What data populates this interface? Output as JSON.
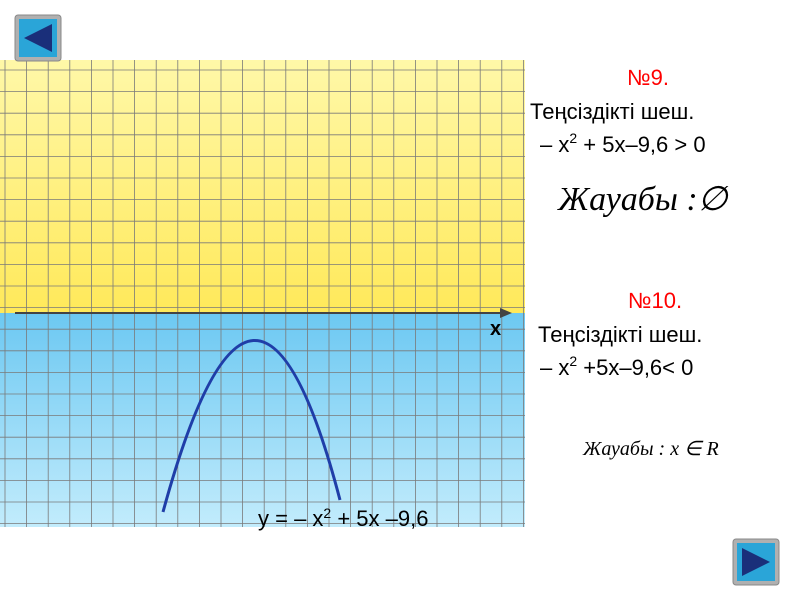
{
  "problems": [
    {
      "number": "№9.",
      "instruction": "Теңсіздікті шеш.",
      "inequality": {
        "before": "– x",
        "exponent": "2",
        "after": " + 5x–9,6 > 0"
      },
      "answer": {
        "label": "Жауабы",
        "separator": " :",
        "result": "∅"
      }
    },
    {
      "number": "№10.",
      "instruction": "Теңсіздікті шеш.",
      "inequality": {
        "before": "– x",
        "exponent": "2",
        "after": " +5x–9,6< 0"
      },
      "answer": {
        "label": "Жауабы",
        "separator": " : ",
        "result": "x ∈ R"
      }
    }
  ],
  "graph": {
    "axis_label": "x",
    "curve_label": {
      "before": "y = – x",
      "exponent": "2",
      "after": " + 5x –9,6"
    }
  }
}
